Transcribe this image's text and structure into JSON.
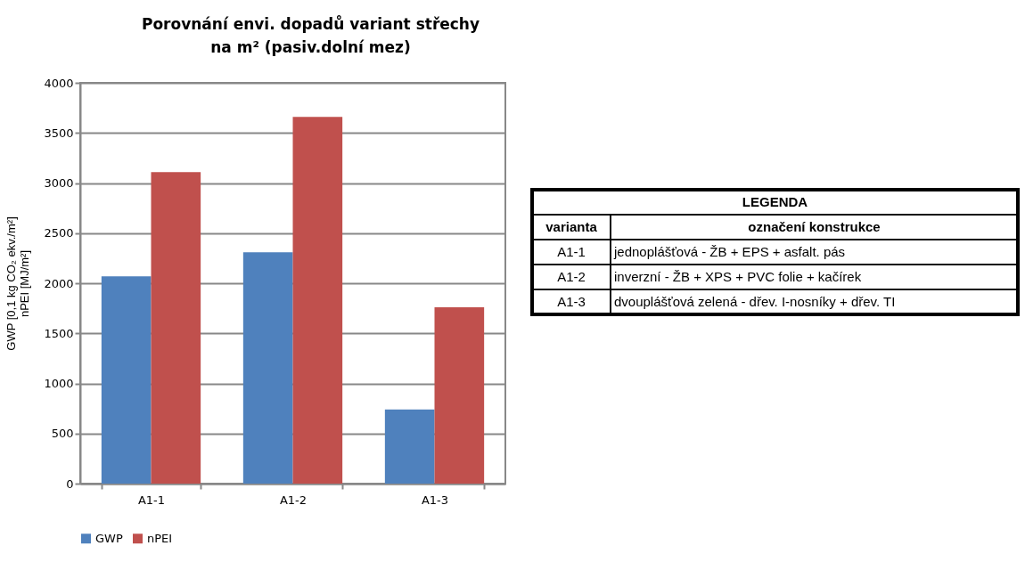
{
  "chart_data": [
    {
      "type": "bar",
      "title": "Porovnání envi. dopadů variant střechy\nna m² (pasiv.dolní mez)",
      "ylabel": "GWP [0,1 kg CO₂ ekv./m²]\nnPEI [MJ/m²]",
      "categories": [
        "A1-1",
        "A1-2",
        "A1-3"
      ],
      "series": [
        {
          "name": "GWP",
          "color": "#4f81bd",
          "values": [
            2070,
            2310,
            740
          ]
        },
        {
          "name": "nPEI",
          "color": "#c0504d",
          "values": [
            3110,
            3660,
            1760
          ]
        }
      ],
      "ylim": [
        0,
        4000
      ],
      "yticks": [
        0,
        500,
        1000,
        1500,
        2000,
        2500,
        3000,
        3500,
        4000
      ],
      "grid": "y",
      "legend": "bottom"
    },
    {
      "type": "other",
      "title": "LEGENDA",
      "annotations": [
        "varianta",
        "označení konstrukce",
        "A1-1",
        "jednoplášťová - ŽB + EPS + asfalt. pás",
        "A1-2",
        "inverzní - ŽB + XPS + PVC folie + kačírek",
        "A1-3",
        "dvouplášťová zelená - dřev. I-nosníky + dřev. TI"
      ]
    }
  ]
}
